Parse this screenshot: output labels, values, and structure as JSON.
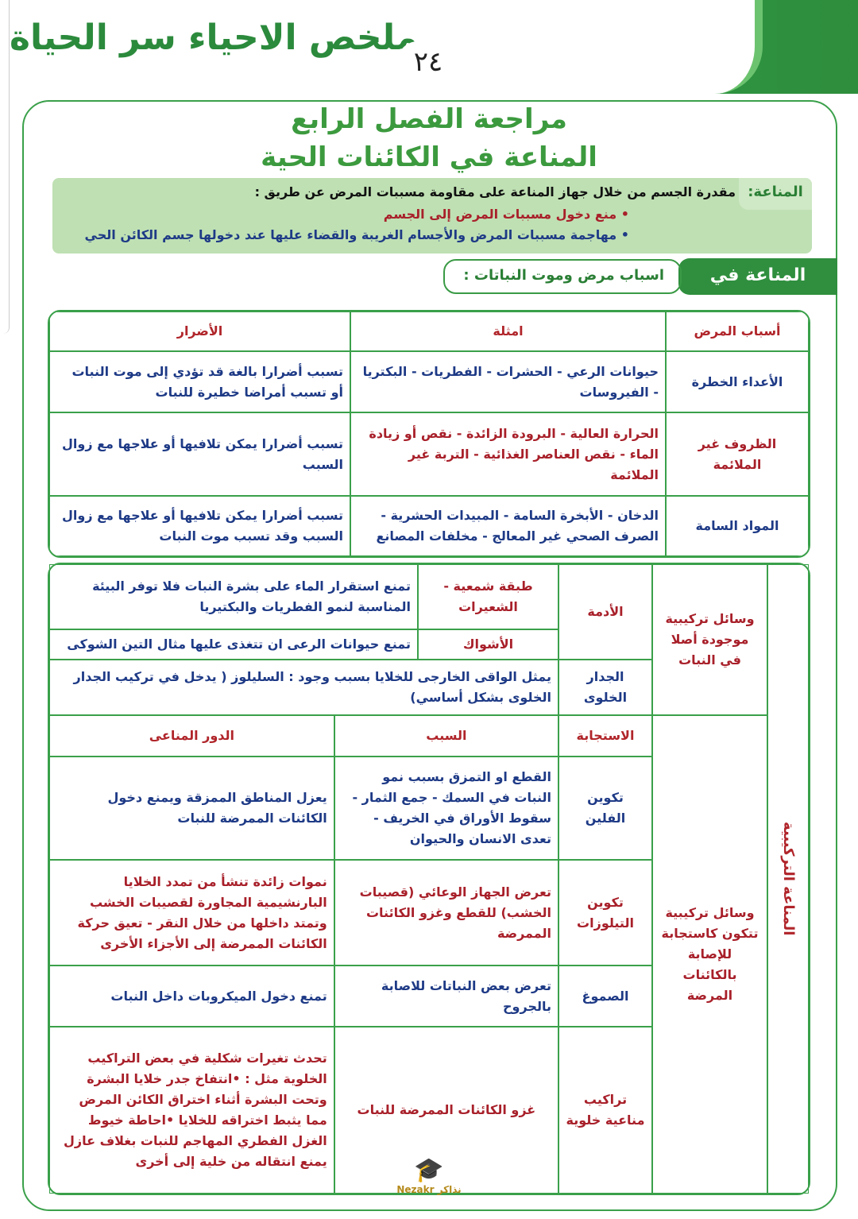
{
  "header": {
    "book_title": "ملخص الاحياء سر الحياة",
    "page_number": "٢٤"
  },
  "titles": {
    "line1": "مراجعة الفصل الرابع",
    "line2": "المناعة في الكائنات الحية"
  },
  "definition": {
    "label": "المناعة:",
    "text": "مقدرة الجسم من خلال جهاز المناعة على مقاومة مسببات المرض عن طريق :",
    "bullets": [
      "• منع دخول مسببات المرض إلى الجسم",
      "• مهاجمة مسببات المرض والأجسام الغريبة والقضاء عليها عند دخولها جسم الكائن الحي"
    ]
  },
  "plants": {
    "label": "المناعة في النبات:",
    "subtitle": "اسباب مرض وموت النباتات :"
  },
  "table1": {
    "headers": [
      "أسباب المرض",
      "امثلة",
      "الأضرار"
    ],
    "rows": [
      [
        "الأعداء الخطرة",
        "حيوانات الرعي - الحشرات - الفطريات - البكتريا - الفيروسات",
        "تسبب أضرارا بالغة قد تؤدي إلى موت النبات أو تسبب أمراضا خطيرة للنبات"
      ],
      [
        "الظروف غير الملائمة",
        "الحرارة العالية - البرودة الزائدة - نقص أو زيادة الماء - نقص العناصر الغذائية - التربة غير الملائمة",
        "تسبب أضرارا يمكن تلافيها أو علاجها مع زوال السبب"
      ],
      [
        "المواد السامة",
        "الدخان - الأبخرة السامة - المبيدات الحشرية - الصرف الصحي غير المعالج - مخلفات المصانع",
        "تسبب أضرارا يمكن تلافيها أو علاجها مع زوال السبب وقد تسبب موت النبات"
      ]
    ]
  },
  "table2": {
    "side_label": "المناعة التركيبية",
    "cat1": "وسائل تركيبية موجودة أصلا في النبات",
    "cat2": "وسائل تركيبية تتكون كاستجابة للإصابة بالكائنات المرضة",
    "adama": "الأدمة",
    "wax": "طبقة شمعية - الشعيرات",
    "wax_desc": "تمنع استقرار الماء على بشرة النبات فلا توفر البيئة المناسبة لنمو الفطريات والبكتيريا",
    "thorns": "الأشواك",
    "thorns_desc": "تمنع حيوانات الرعى ان تتغذى عليها مثال التين الشوكى",
    "wall": "الجدار الخلوى",
    "wall_desc": "يمثل الواقى الخارجى للخلايا بسبب وجود : السليلوز ( يدخل في تركيب الجدار الخلوى بشكل أساسي)",
    "headers": [
      "الاستجابة",
      "السبب",
      "الدور المناعى"
    ],
    "rows": [
      [
        "تكوين الفلين",
        "القطع او التمزق بسبب نمو النبات في السمك - جمع الثمار - سقوط الأوراق في الخريف - تعدى الانسان والحيوان",
        "يعزل المناطق الممزقة ويمنع دخول الكائنات الممرضة للنبات"
      ],
      [
        "تكوين التيلوزات",
        "تعرض الجهاز الوعائي (قصيبات الخشب) للقطع وغزو الكائنات الممرضة",
        "نموات زائدة تنشأ من تمدد الخلايا البارنشيمية المجاورة لقصيبات الخشب وتمتد داخلها من خلال النقر - تعيق حركة الكائنات الممرضة إلى الأجزاء الأخرى"
      ],
      [
        "الصموغ",
        "تعرض بعض النباتات للاصابة بالجروح",
        "تمنع دخول الميكروبات داخل النبات"
      ],
      [
        "تراكيب مناعية خلوية",
        "غزو الكائنات الممرضة للنبات",
        "تحدث تغيرات شكلية في بعض التراكيب الخلوية مثل : •انتفاخ جدر خلايا البشرة وتحت البشرة أثناء اختراق الكائن المرض مما يثبط اختراقه للخلايا •احاطة خيوط الغزل الفطري المهاجم للنبات بغلاف عازل يمنع انتقاله من خلية إلى أخرى"
      ]
    ]
  },
  "logo": {
    "text": "Nezakr نذاكر"
  },
  "colors": {
    "green": "#3aa04a",
    "red": "#a8202a",
    "blue": "#1e3a86"
  }
}
